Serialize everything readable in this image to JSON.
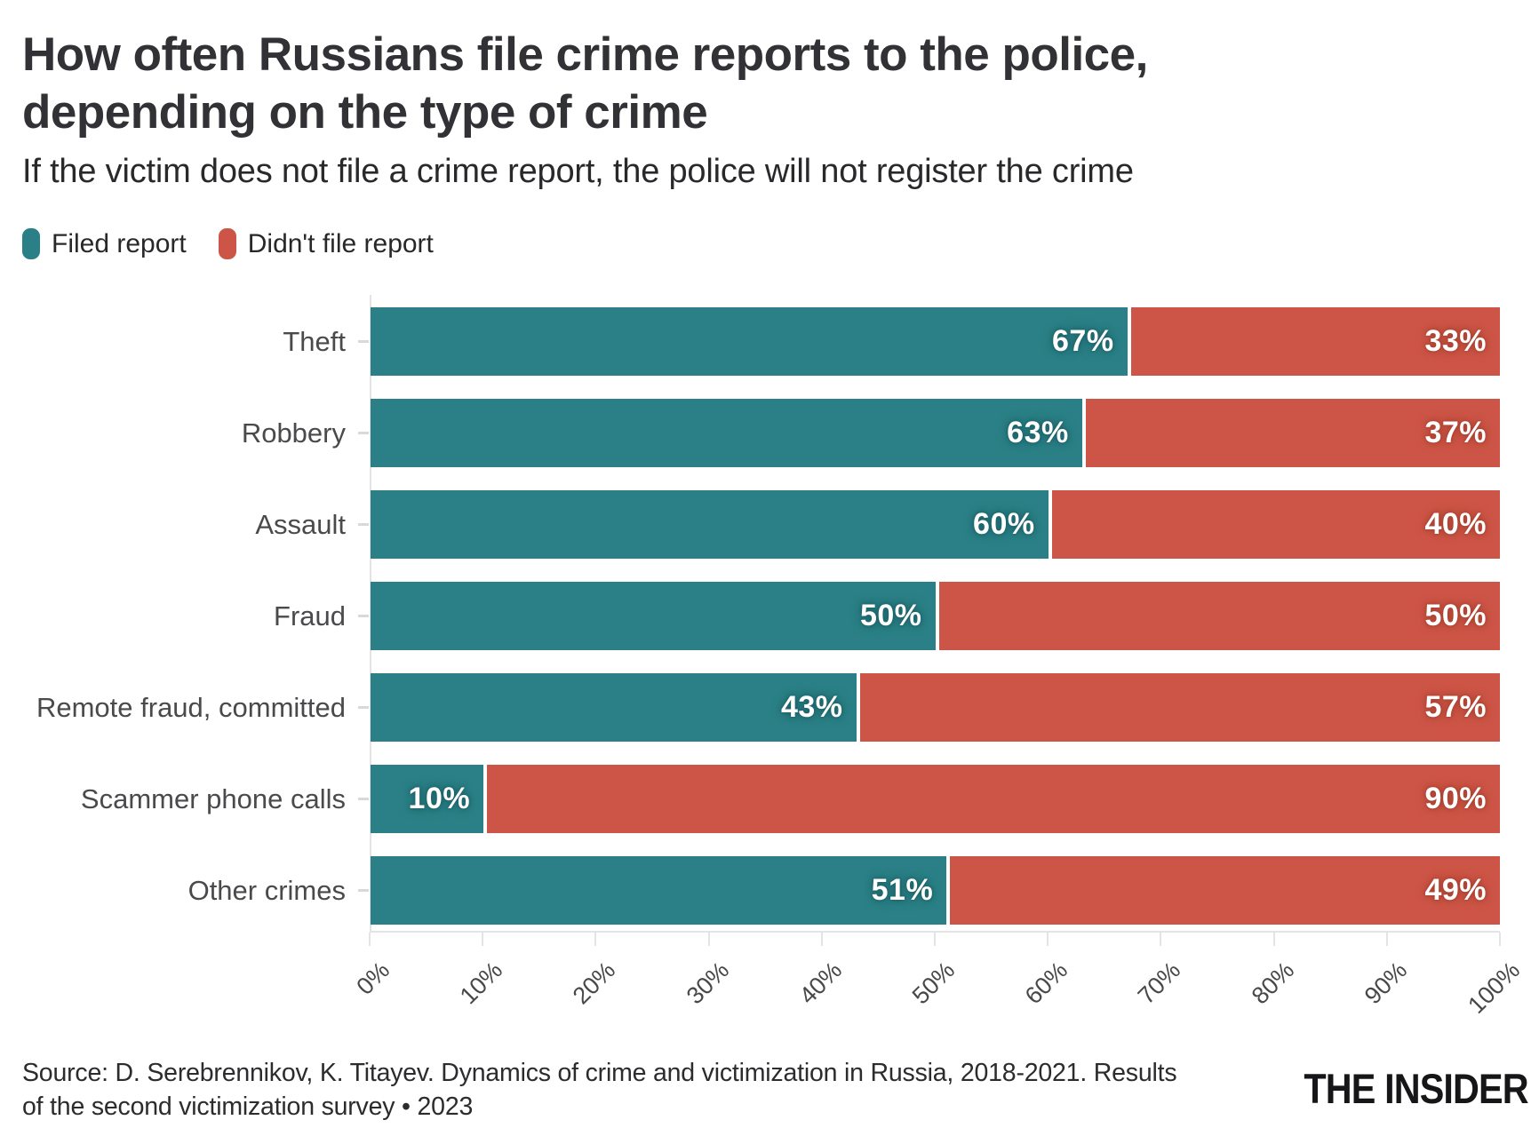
{
  "chart_data": {
    "type": "bar",
    "orientation": "horizontal",
    "stacked": true,
    "title_line1": "How often Russians file crime reports to the police,",
    "title_line2": "depending on the type of crime",
    "subtitle": "If the victim does not file a crime report, the police will not register the crime",
    "categories": [
      "Theft",
      "Robbery",
      "Assault",
      "Fraud",
      "Remote fraud, committed",
      "Scammer phone calls",
      "Other crimes"
    ],
    "series": [
      {
        "name": "Filed report",
        "color": "#2A8086",
        "values": [
          67,
          63,
          60,
          50,
          43,
          10,
          51
        ]
      },
      {
        "name": "Didn't file report",
        "color": "#CD5547",
        "values": [
          33,
          37,
          40,
          50,
          57,
          90,
          49
        ]
      }
    ],
    "value_suffix": "%",
    "xlim": [
      0,
      100
    ],
    "x_tick_labels": [
      "0%",
      "10%",
      "20%",
      "30%",
      "40%",
      "50%",
      "60%",
      "70%",
      "80%",
      "90%",
      "100%"
    ],
    "grid": false,
    "legend_position": "top-left",
    "value_labels": "inside-end"
  },
  "footer": {
    "source_line1": "Source: D. Serebrennikov, K. Titayev. Dynamics of crime and victimization in Russia, 2018-2021. Results",
    "source_line2": "of the second victimization survey • 2023",
    "logo": "THE INSIDER"
  }
}
